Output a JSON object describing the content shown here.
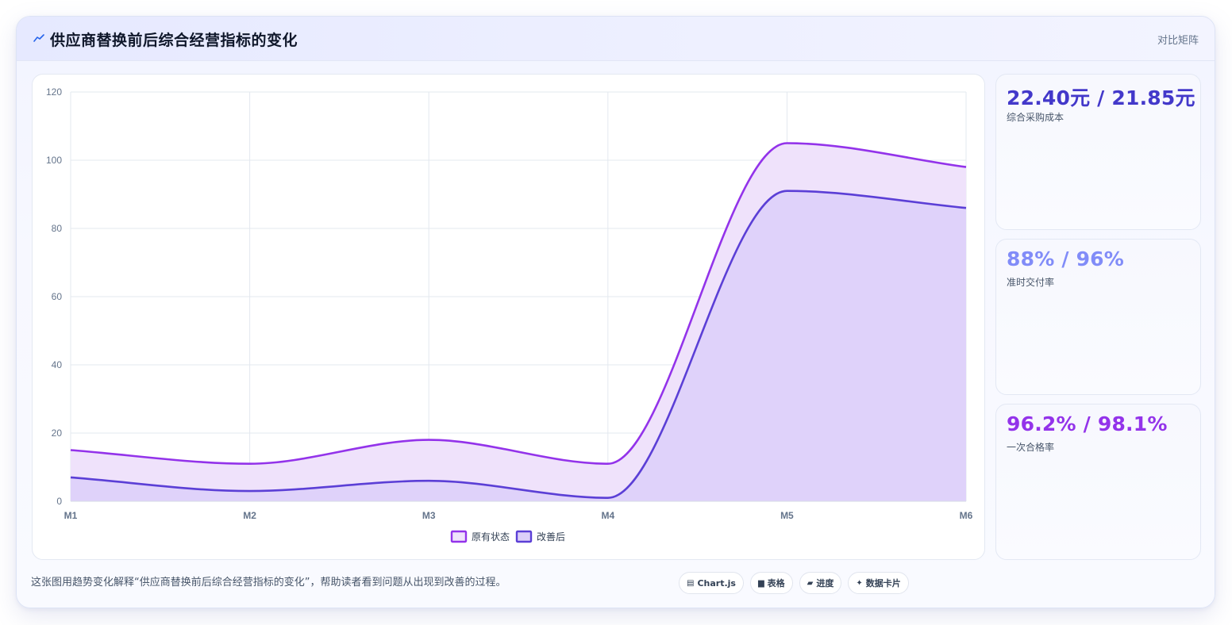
{
  "header": {
    "title": "供应商替换前后综合经营指标的变化",
    "right_label": "对比矩阵",
    "icon": "trend-icon"
  },
  "chart_data": {
    "type": "area",
    "categories": [
      "M1",
      "M2",
      "M3",
      "M4",
      "M5",
      "M6"
    ],
    "y_ticks": [
      "0",
      "20",
      "40",
      "60",
      "80",
      "100",
      "120"
    ],
    "ylim": [
      0,
      120
    ],
    "grid": true,
    "legend_position": "bottom",
    "series": [
      {
        "name": "原有状态",
        "values": [
          15,
          11,
          18,
          11,
          105,
          98
        ],
        "color": "#9333ea",
        "fill": "#efe2fb"
      },
      {
        "name": "改善后",
        "values": [
          7,
          3,
          6,
          1,
          91,
          86
        ],
        "color": "#5b3fd6",
        "fill": "#dccff9"
      }
    ]
  },
  "metrics": [
    {
      "value": "22.40元 / 21.85元",
      "label": "综合采购成本",
      "color": "#4338ca"
    },
    {
      "value": "88% / 96%",
      "label": "准时交付率",
      "color": "#818cf8"
    },
    {
      "value": "96.2% / 98.1%",
      "label": "一次合格率",
      "color": "#9333ea"
    }
  ],
  "footer": {
    "text": "这张图用趋势变化解释“供应商替换前后综合经营指标的变化”，帮助读者看到问题从出现到改善的过程。",
    "chips": [
      {
        "icon": "chart-icon",
        "glyph": "▤",
        "label": "Chart.js"
      },
      {
        "icon": "table-icon",
        "glyph": "▆",
        "label": "表格"
      },
      {
        "icon": "progress-icon",
        "glyph": "▰",
        "label": "进度"
      },
      {
        "icon": "sparkle-icon",
        "glyph": "✦",
        "label": "数据卡片"
      }
    ]
  }
}
